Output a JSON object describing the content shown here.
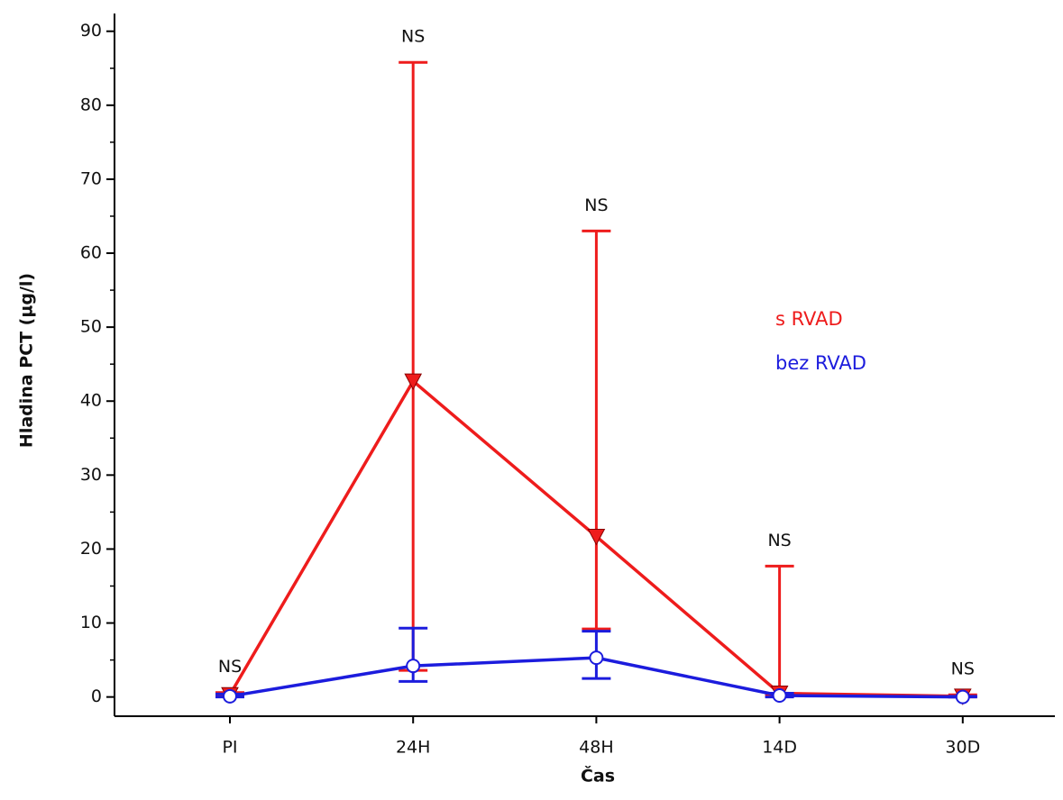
{
  "chart_data": {
    "type": "line",
    "x_label": "Čas",
    "y_label": "Hladina PCT (µg/l)",
    "categories": [
      "PI",
      "24H",
      "48H",
      "14D",
      "30D"
    ],
    "series": [
      {
        "name": "s RVAD",
        "color": "#ee1c1c",
        "marker": "triangle-down",
        "values": [
          0.3,
          42.7,
          21.7,
          0.5,
          0.1
        ],
        "lower": [
          0.1,
          3.6,
          9.2,
          0.2,
          0.0
        ],
        "upper": [
          0.6,
          85.8,
          63.0,
          17.7,
          0.3
        ]
      },
      {
        "name": "bez RVAD",
        "color": "#1c1cdd",
        "marker": "circle",
        "values": [
          0.1,
          4.2,
          5.3,
          0.2,
          0.0
        ],
        "lower": [
          0.0,
          2.1,
          2.5,
          0.0,
          0.0
        ],
        "upper": [
          0.4,
          9.3,
          8.9,
          0.5,
          0.1
        ]
      }
    ],
    "annotations": [
      "NS",
      "NS",
      "NS",
      "NS",
      "NS"
    ],
    "ylim": [
      -2.6,
      92.4
    ],
    "yticks": [
      0,
      10,
      20,
      30,
      40,
      50,
      60,
      70,
      80,
      90
    ],
    "minor_yticks": [
      5,
      15,
      25,
      35,
      45,
      55,
      65,
      75,
      85
    ],
    "legend": "right",
    "grid": false
  }
}
